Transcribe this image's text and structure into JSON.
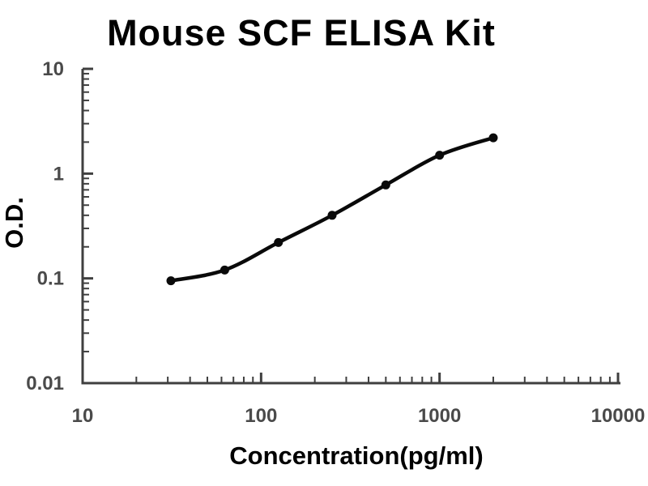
{
  "figure": {
    "background": "#ffffff"
  },
  "chart": {
    "colors": {
      "title": "#0c0c0c",
      "axis": "#3f3f3f",
      "tick_label": "#4a4a4a",
      "curve": "#0a0a0a",
      "marker": "#0a0a0a"
    }
  },
  "chart_data": {
    "type": "line",
    "title": "Mouse SCF ELISA Kit",
    "xlabel": "Concentration(pg/ml)",
    "ylabel": "O.D.",
    "x_scale": "log",
    "y_scale": "log",
    "xlim": [
      10,
      10000
    ],
    "ylim": [
      0.01,
      10
    ],
    "x_ticks": [
      10,
      100,
      1000,
      10000
    ],
    "y_ticks": [
      10,
      1,
      0.1,
      0.01
    ],
    "grid": false,
    "legend": false,
    "series": [
      {
        "name": "standard-curve",
        "x": [
          31.25,
          62.5,
          125,
          250,
          500,
          1000,
          2000
        ],
        "y": [
          0.095,
          0.12,
          0.22,
          0.4,
          0.78,
          1.5,
          2.2
        ],
        "marker": "circle"
      }
    ]
  }
}
